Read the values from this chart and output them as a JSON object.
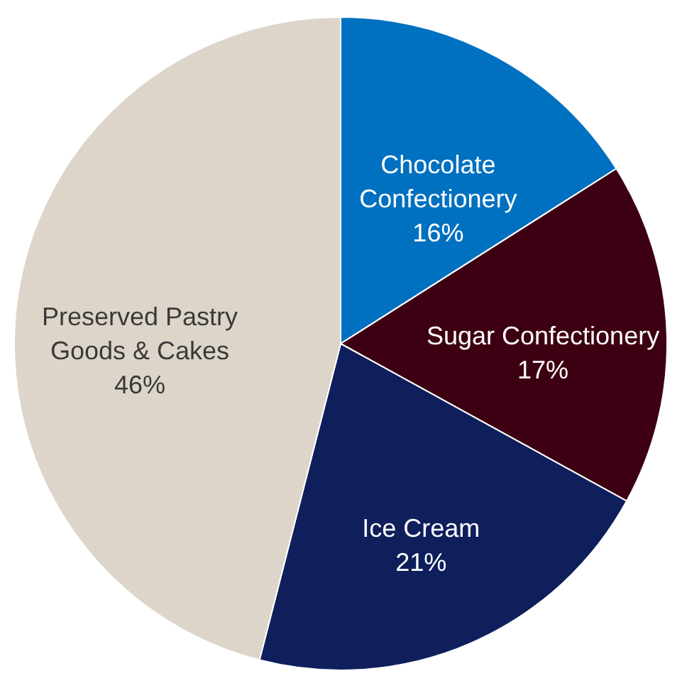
{
  "chart_data": {
    "type": "pie",
    "categories": [
      "Chocolate Confectionery",
      "Sugar Confectionery",
      "Ice Cream",
      "Preserved Pastry Goods & Cakes"
    ],
    "values": [
      16,
      17,
      21,
      46
    ],
    "colors": [
      "#0070c0",
      "#3d0012",
      "#0f1f5c",
      "#ddd5c9"
    ],
    "value_labels": [
      "16%",
      "17%",
      "21%",
      "46%"
    ]
  }
}
